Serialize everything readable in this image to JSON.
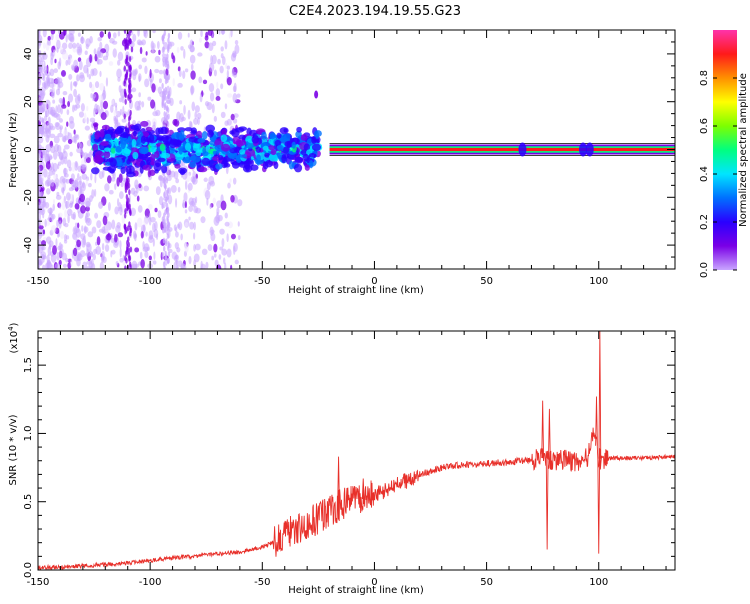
{
  "title": "C2E4.2023.194.19.55.G23",
  "colors": {
    "snr_line": "#e8302a",
    "frame": "#000000",
    "colormap": [
      "#f0e6ff",
      "#c9a6ff",
      "#7a00e6",
      "#2a00ff",
      "#0070ff",
      "#00e5ff",
      "#00ff80",
      "#7dff00",
      "#ffff00",
      "#ff9000",
      "#ff1a1a",
      "#ff33aa"
    ]
  },
  "chart_data": [
    {
      "type": "heatmap",
      "name": "spectrogram",
      "xlabel": "Height of straight line (km)",
      "ylabel": "Frequency (Hz)",
      "xlim": [
        -150,
        134
      ],
      "ylim": [
        -50,
        50
      ],
      "x_ticks": [
        -150,
        -100,
        -50,
        0,
        50,
        100
      ],
      "y_ticks": [
        -40,
        -20,
        0,
        20,
        40
      ],
      "grid": false,
      "colorbar": {
        "label": "Normalized spectral amplitude",
        "range": [
          0.0,
          1.0
        ],
        "ticks": [
          0.0,
          0.2,
          0.4,
          0.6,
          0.8
        ]
      },
      "features": {
        "scattered_noise_x_range": [
          -150,
          -60
        ],
        "broadband_cluster_x_range": [
          -125,
          -25
        ],
        "narrow_band_x_range": [
          -20,
          134
        ],
        "narrow_band_frequency": 0,
        "isolated_feature": {
          "x": -26,
          "freq": 23
        },
        "vertical_streaks_x": [
          -110,
          -93
        ]
      }
    },
    {
      "type": "line",
      "name": "snr",
      "xlabel": "Height of straight line (km)",
      "ylabel": "SNR (10 * v/v)",
      "y_scale_note": "(x10",
      "y_scale_exp": "4",
      "y_scale_close": ")",
      "xlim": [
        -150,
        134
      ],
      "ylim": [
        0.0,
        1.75
      ],
      "x_ticks": [
        -150,
        -100,
        -50,
        0,
        50,
        100
      ],
      "y_ticks": [
        "0.0",
        "0.5",
        "1.0",
        "1.5"
      ],
      "grid": false,
      "series": [
        {
          "x": [
            -150,
            -140,
            -130,
            -120,
            -110,
            -100,
            -90,
            -80,
            -70,
            -60,
            -55,
            -50,
            -45,
            -40,
            -35,
            -30,
            -25,
            -20,
            -15,
            -10,
            -5,
            0,
            10,
            20,
            30,
            40,
            50,
            60,
            65,
            70,
            75,
            80,
            85,
            90,
            95,
            98,
            100,
            102,
            105,
            110,
            120,
            134
          ],
          "values": [
            0.02,
            0.02,
            0.03,
            0.04,
            0.05,
            0.07,
            0.09,
            0.1,
            0.12,
            0.13,
            0.15,
            0.17,
            0.2,
            0.26,
            0.3,
            0.34,
            0.38,
            0.42,
            0.48,
            0.5,
            0.52,
            0.55,
            0.62,
            0.7,
            0.75,
            0.77,
            0.78,
            0.79,
            0.8,
            0.8,
            0.82,
            0.8,
            0.8,
            0.8,
            0.82,
            1.0,
            0.82,
            0.8,
            0.82,
            0.82,
            0.82,
            0.83
          ],
          "spikes": [
            {
              "x": -16,
              "value": 0.83
            },
            {
              "x": -5,
              "value": 0.67
            },
            {
              "x": 75,
              "value": 1.24
            },
            {
              "x": 77,
              "value": 0.15
            },
            {
              "x": 78,
              "value": 1.18
            },
            {
              "x": 99,
              "value": 1.27
            },
            {
              "x": 100,
              "value": 0.12
            },
            {
              "x": 100.5,
              "value": 1.75
            }
          ]
        }
      ]
    }
  ]
}
